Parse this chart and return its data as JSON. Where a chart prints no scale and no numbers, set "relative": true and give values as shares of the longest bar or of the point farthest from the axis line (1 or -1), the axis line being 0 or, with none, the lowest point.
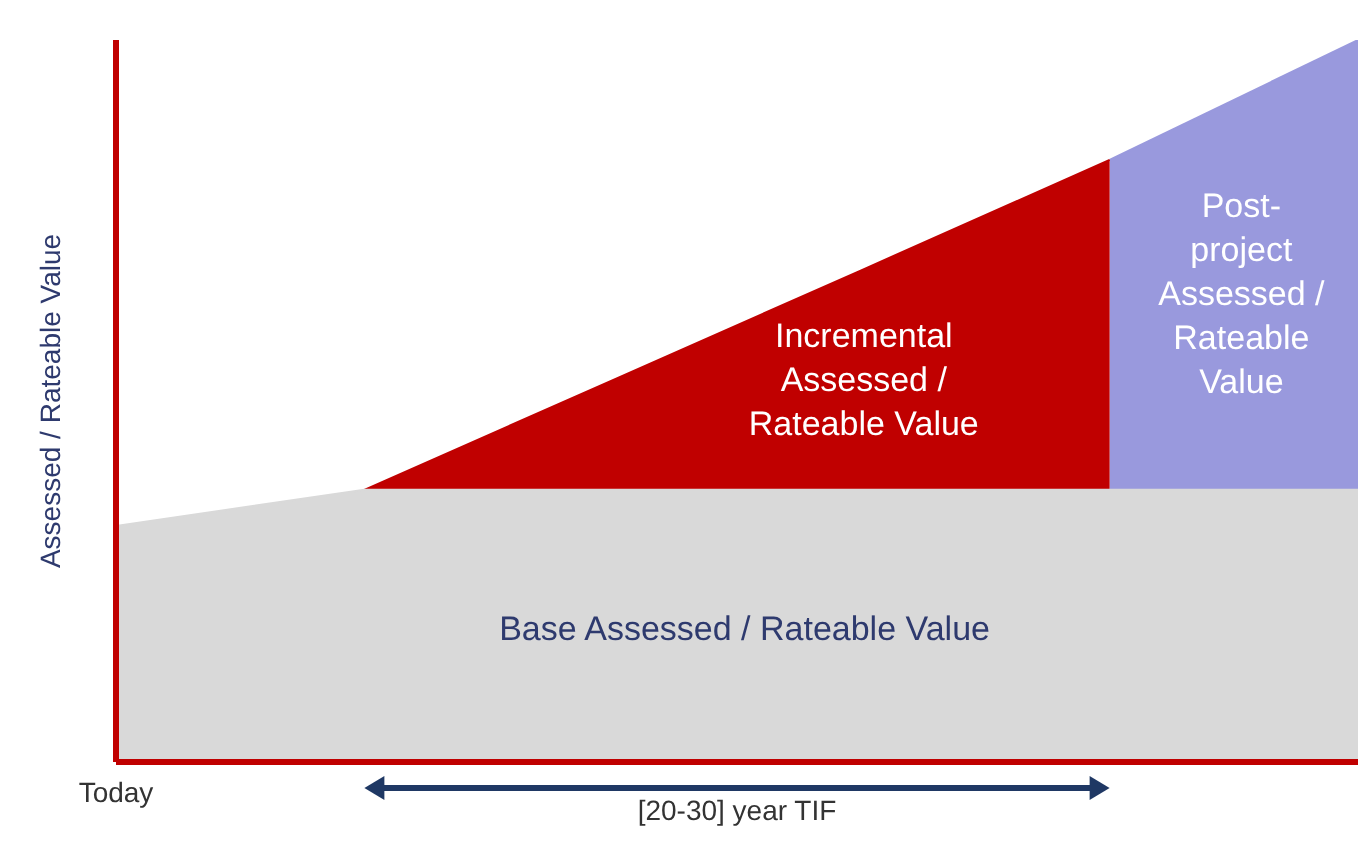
{
  "chart_data": {
    "type": "area",
    "relative": true,
    "ylabel": "Assessed / Rateable Value",
    "categories": [
      null,
      null,
      null,
      null,
      null,
      null
    ],
    "series": [
      {
        "name": "Post-project Assessed / Rateable Value",
        "color": "#9999dd",
        "values": [
          null,
          null,
          null,
          null,
          0.834,
          1.0
        ]
      },
      {
        "name": "Incremental Assessed / Rateable Value",
        "color": "#c00000",
        "values": [
          null,
          0.377,
          0.529,
          0.681,
          0.834,
          null
        ]
      },
      {
        "name": "Base Assessed / Rateable Value",
        "color": "#d9d9d9",
        "values": [
          0.327,
          0.377,
          0.377,
          0.377,
          0.377,
          0.377
        ]
      }
    ],
    "annotations": [
      "Today",
      "[20-30] year TIF"
    ]
  }
}
